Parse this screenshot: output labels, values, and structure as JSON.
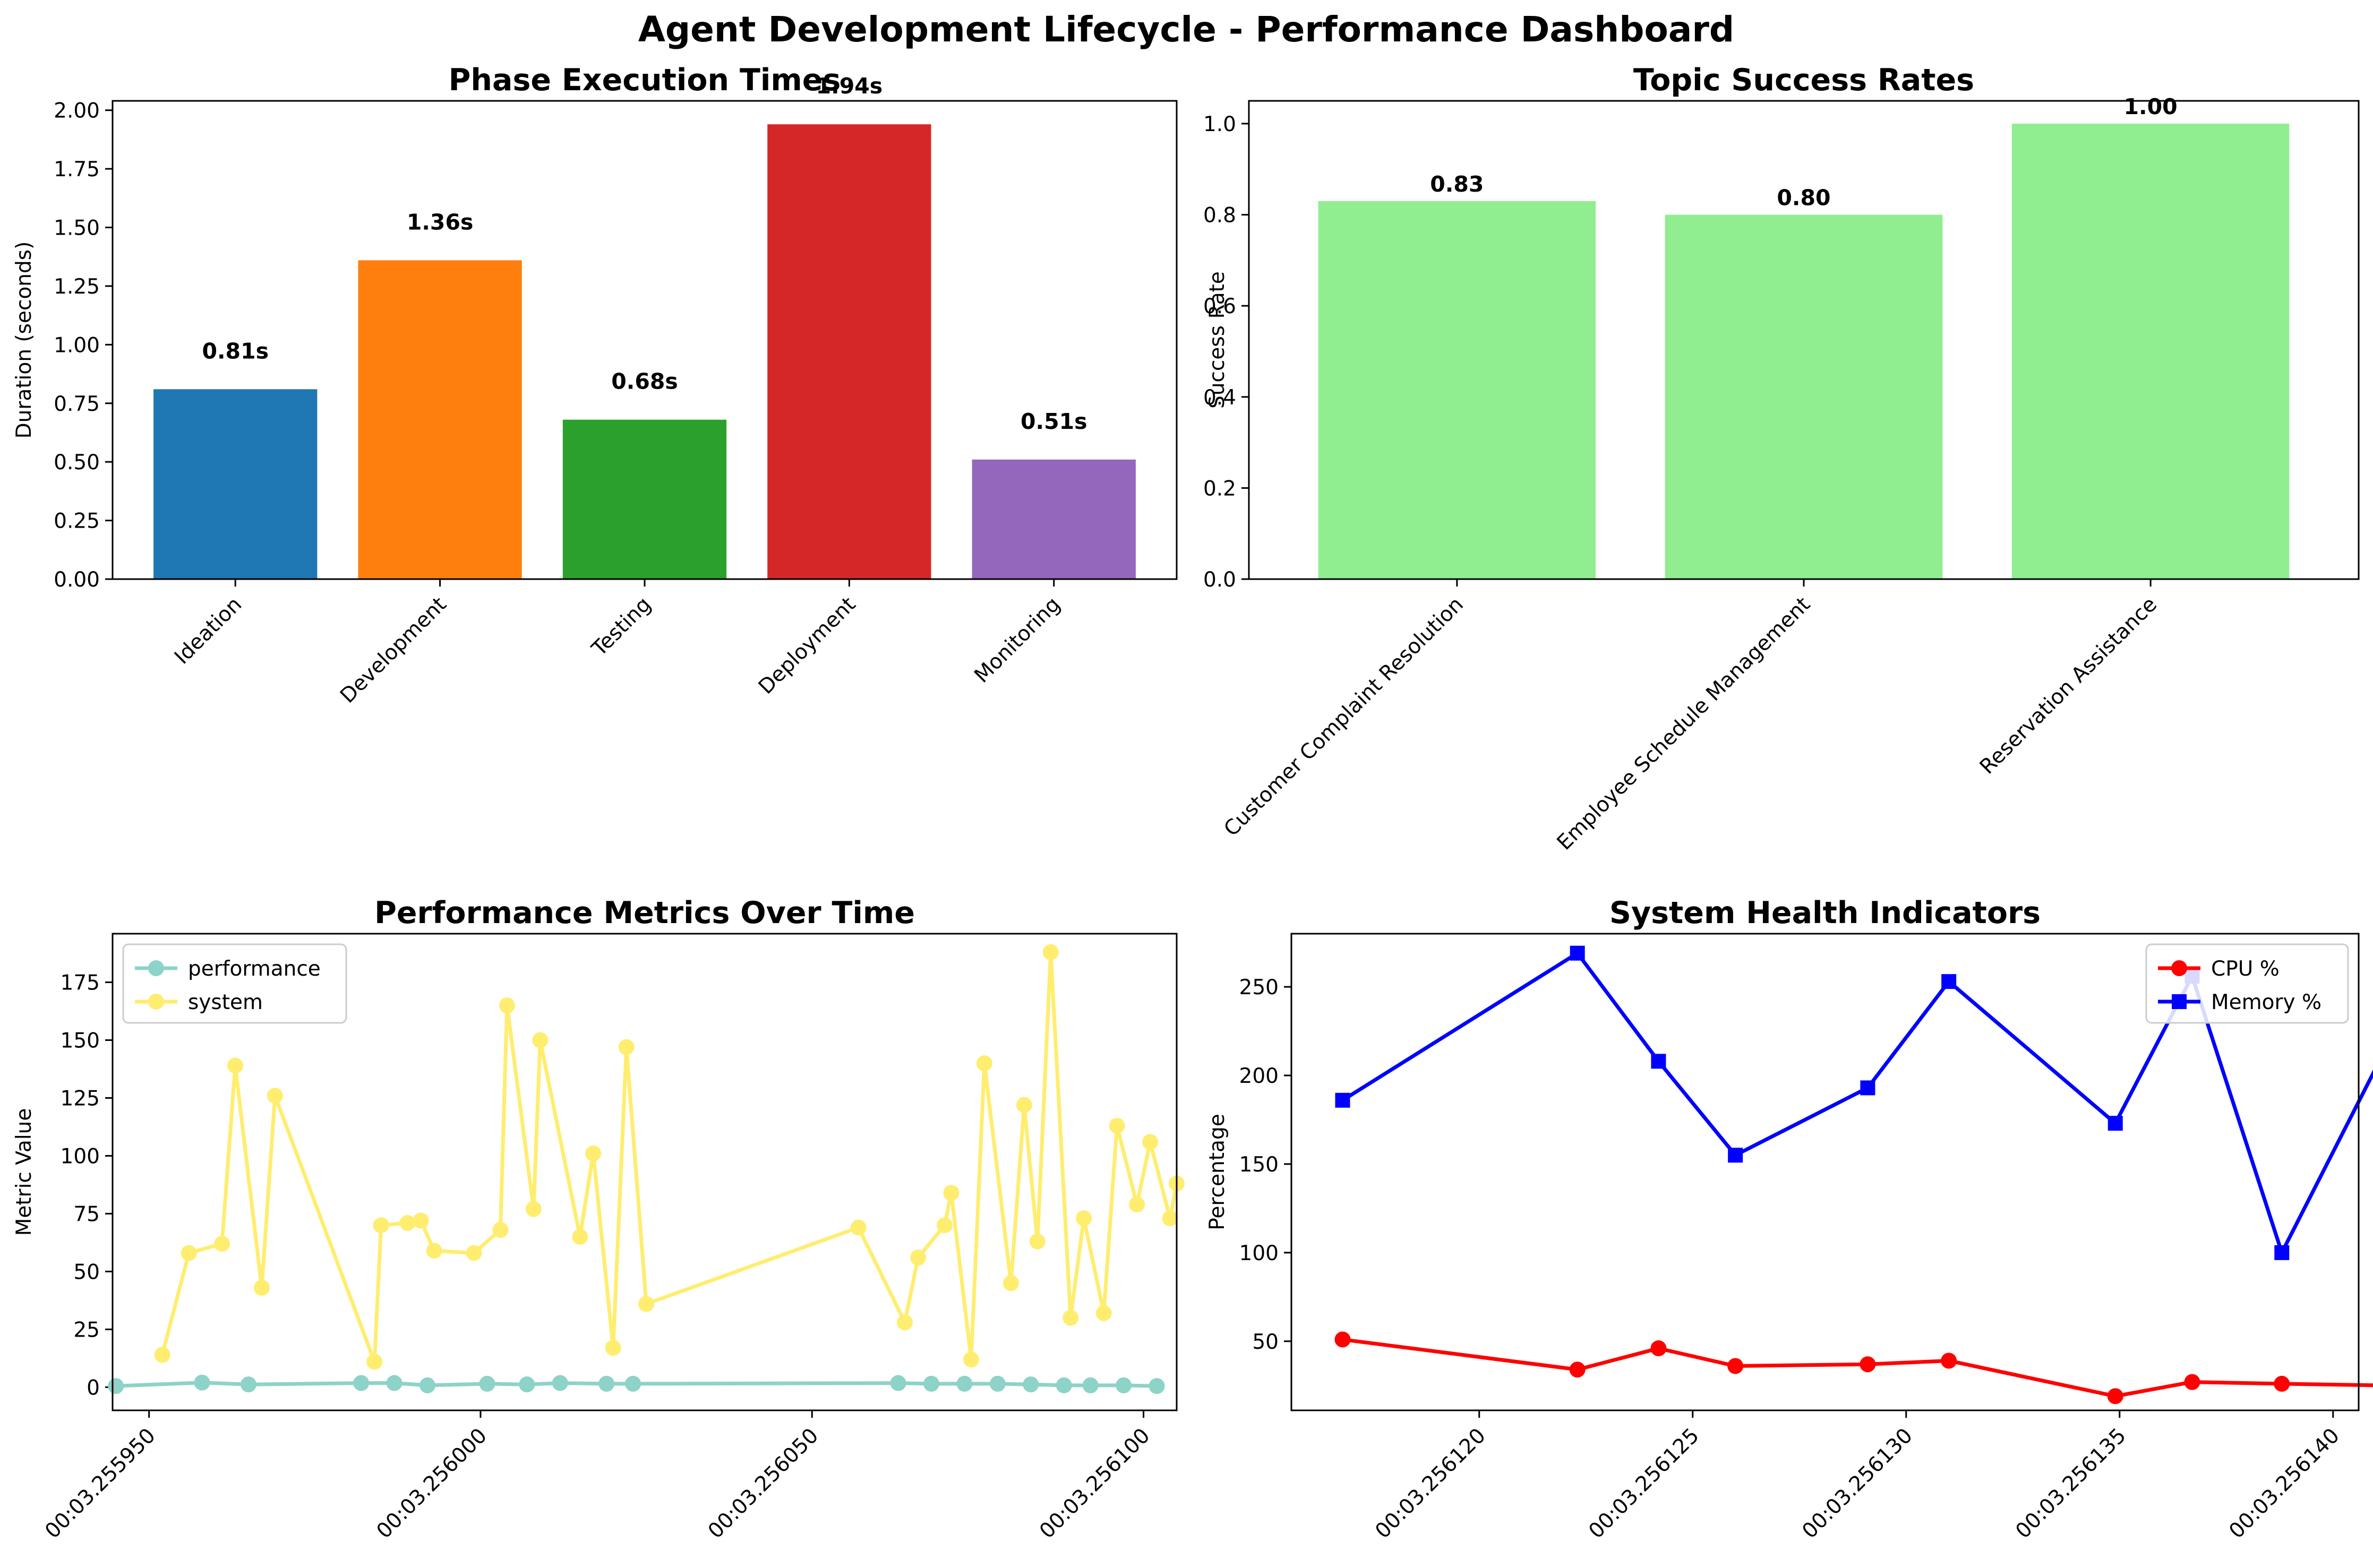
{
  "page_title": "Agent Development Lifecycle - Performance Dashboard",
  "colors": {
    "phase_bars": [
      "#1f77b4",
      "#ff7f0e",
      "#2ca02c",
      "#d62728",
      "#9467bd"
    ],
    "topic_bar": "#90ee90",
    "performance": "#8dd3c7",
    "system": "#ffed6f",
    "cpu": "#ff0000",
    "memory": "#0000ff"
  },
  "chart_data": [
    {
      "type": "bar",
      "title": "Phase Execution Times",
      "xlabel": "",
      "ylabel": "Duration (seconds)",
      "categories": [
        "Ideation",
        "Development",
        "Testing",
        "Deployment",
        "Monitoring"
      ],
      "values": [
        0.81,
        1.36,
        0.68,
        1.94,
        0.51
      ],
      "value_labels": [
        "0.81s",
        "1.36s",
        "0.68s",
        "1.94s",
        "0.51s"
      ],
      "ylim": [
        0,
        2.04
      ],
      "yticks": [
        "0.00",
        "0.25",
        "0.50",
        "0.75",
        "1.00",
        "1.25",
        "1.50",
        "1.75",
        "2.00"
      ]
    },
    {
      "type": "bar",
      "title": "Topic Success Rates",
      "xlabel": "",
      "ylabel": "Success Rate",
      "categories": [
        "Customer Complaint Resolution",
        "Employee Schedule Management",
        "Reservation Assistance"
      ],
      "values": [
        0.83,
        0.8,
        1.0
      ],
      "value_labels": [
        "0.83",
        "0.80",
        "1.00"
      ],
      "ylim": [
        0,
        1.05
      ],
      "yticks": [
        "0.0",
        "0.2",
        "0.4",
        "0.6",
        "0.8",
        "1.0"
      ]
    },
    {
      "type": "line",
      "title": "Performance Metrics Over Time",
      "xlabel": "",
      "ylabel": "Metric Value",
      "xlim": [
        255944.5,
        256105.0
      ],
      "ylim": [
        -10,
        196
      ],
      "xticks": [
        {
          "value": 255950,
          "label": "00:03.255950"
        },
        {
          "value": 256000,
          "label": "00:03.256000"
        },
        {
          "value": 256050,
          "label": "00:03.256050"
        },
        {
          "value": 256100,
          "label": "00:03.256100"
        }
      ],
      "yticks": [
        "0",
        "25",
        "50",
        "75",
        "100",
        "125",
        "150",
        "175"
      ],
      "legend": "top-left",
      "series": [
        {
          "name": "performance",
          "points": [
            [
              255945,
              0.5
            ],
            [
              255958,
              2
            ],
            [
              255965,
              1.2
            ],
            [
              255982,
              1.8
            ],
            [
              255987,
              1.8
            ],
            [
              255992,
              0.8
            ],
            [
              256001,
              1.5
            ],
            [
              256007,
              1.2
            ],
            [
              256012,
              1.8
            ],
            [
              256019,
              1.5
            ],
            [
              256023,
              1.5
            ],
            [
              256063,
              1.8
            ],
            [
              256068,
              1.5
            ],
            [
              256073,
              1.5
            ],
            [
              256078,
              1.5
            ],
            [
              256083,
              1.2
            ],
            [
              256088,
              0.8
            ],
            [
              256092,
              0.8
            ],
            [
              256097,
              0.8
            ],
            [
              256102,
              0.5
            ]
          ]
        },
        {
          "name": "system",
          "points": [
            [
              255952,
              14
            ],
            [
              255956,
              58
            ],
            [
              255961,
              62
            ],
            [
              255963,
              139
            ],
            [
              255967,
              43
            ],
            [
              255969,
              126
            ],
            [
              255984,
              11
            ],
            [
              255985,
              70
            ],
            [
              255989,
              71
            ],
            [
              255991,
              72
            ],
            [
              255993,
              59
            ],
            [
              255999,
              58
            ],
            [
              256003,
              68
            ],
            [
              256004,
              165
            ],
            [
              256008,
              77
            ],
            [
              256009,
              150
            ],
            [
              256015,
              65
            ],
            [
              256017,
              101
            ],
            [
              256020,
              17
            ],
            [
              256022,
              147
            ],
            [
              256025,
              36
            ],
            [
              256057,
              69
            ],
            [
              256064,
              28
            ],
            [
              256066,
              56
            ],
            [
              256070,
              70
            ],
            [
              256071,
              84
            ],
            [
              256074,
              12
            ],
            [
              256076,
              140
            ],
            [
              256080,
              45
            ],
            [
              256082,
              122
            ],
            [
              256084,
              63
            ],
            [
              256086,
              188
            ],
            [
              256089,
              30
            ],
            [
              256091,
              73
            ],
            [
              256094,
              32
            ],
            [
              256096,
              113
            ],
            [
              256099,
              79
            ],
            [
              256101,
              106
            ],
            [
              256104,
              73
            ],
            [
              256105,
              88
            ]
          ]
        }
      ]
    },
    {
      "type": "line",
      "title": "System Health Indicators",
      "xlabel": "",
      "ylabel": "Percentage",
      "xlim": [
        256115.6,
        256140.6
      ],
      "ylim": [
        11,
        280
      ],
      "xticks": [
        {
          "value": 256120,
          "label": "00:03.256120"
        },
        {
          "value": 256125,
          "label": "00:03.256125"
        },
        {
          "value": 256130,
          "label": "00:03.256130"
        },
        {
          "value": 256135,
          "label": "00:03.256135"
        },
        {
          "value": 256140,
          "label": "00:03.256140"
        }
      ],
      "yticks": [
        "50",
        "100",
        "150",
        "200",
        "250"
      ],
      "legend": "top-right",
      "series": [
        {
          "name": "CPU %",
          "points": [
            [
              256116.8,
              51
            ],
            [
              256122.3,
              34
            ],
            [
              256124.2,
              46
            ],
            [
              256126.0,
              36
            ],
            [
              256129.1,
              37
            ],
            [
              256131.0,
              39
            ],
            [
              256134.9,
              19
            ],
            [
              256136.7,
              27
            ],
            [
              256138.8,
              26
            ],
            [
              256141.4,
              25
            ]
          ]
        },
        {
          "name": "Memory %",
          "points": [
            [
              256116.8,
              186
            ],
            [
              256122.3,
              269
            ],
            [
              256124.2,
              208
            ],
            [
              256126.0,
              155
            ],
            [
              256129.1,
              193
            ],
            [
              256131.0,
              253
            ],
            [
              256134.9,
              173
            ],
            [
              256136.7,
              256
            ],
            [
              256138.8,
              100
            ],
            [
              256141.4,
              223
            ]
          ]
        }
      ]
    }
  ]
}
